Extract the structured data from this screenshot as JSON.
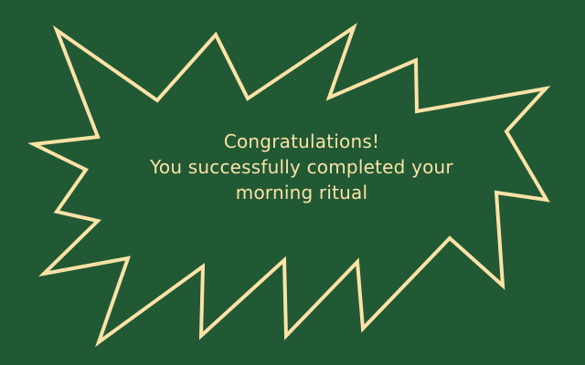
{
  "colors": {
    "background": "#215934",
    "accent": "#fce2a6"
  },
  "message": {
    "line1": "Congratulations!",
    "line2": "You successfully completed your",
    "line3": "morning ritual"
  }
}
